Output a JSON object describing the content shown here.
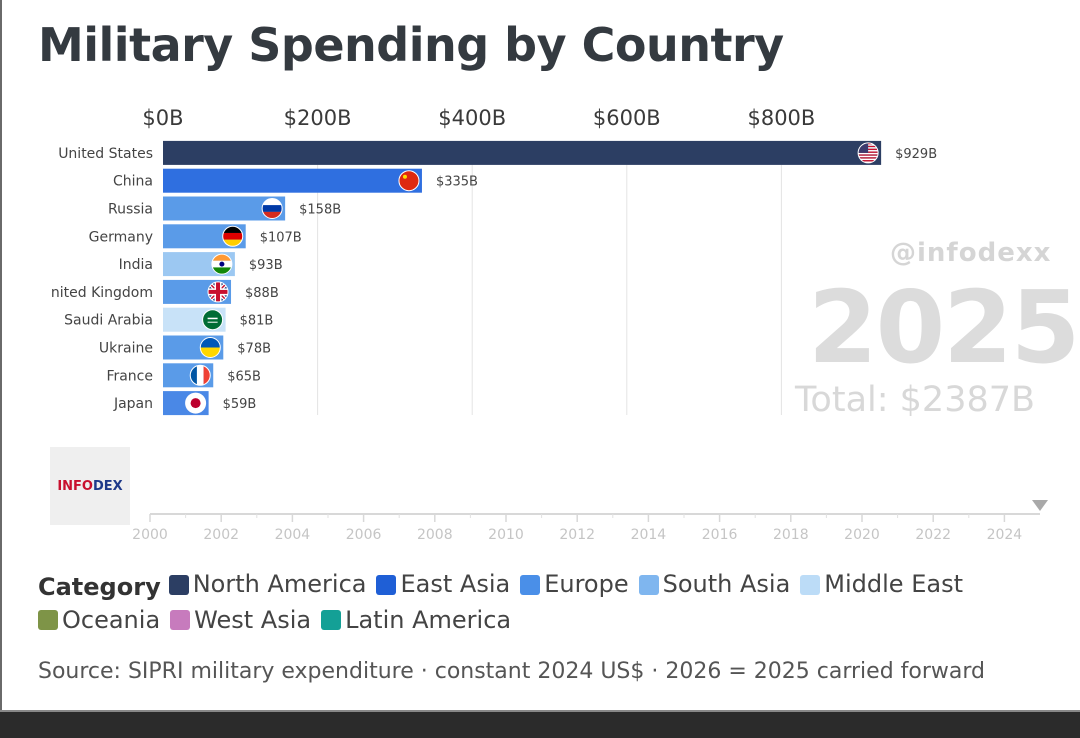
{
  "title": "Military Spending by Country",
  "watermark": "@infodexx",
  "year": "2025",
  "total": "Total: $2387B",
  "logo": {
    "part_a": "INFO",
    "part_b": "DEX"
  },
  "legend": {
    "title": "Category",
    "items": [
      {
        "label": "North America",
        "color": "#2c3e63"
      },
      {
        "label": "East Asia",
        "color": "#1f5fd6"
      },
      {
        "label": "Europe",
        "color": "#4a8fe8"
      },
      {
        "label": "South Asia",
        "color": "#7fb6ef"
      },
      {
        "label": "Middle East",
        "color": "#bcdcf7"
      },
      {
        "label": "Oceania",
        "color": "#7e9447"
      },
      {
        "label": "West Asia",
        "color": "#c77bbd"
      },
      {
        "label": "Latin America",
        "color": "#14a096"
      }
    ]
  },
  "source": "Source: SIPRI military expenditure · constant 2024 US$ · 2026 = 2025 carried forward",
  "chart_data": {
    "type": "bar",
    "orientation": "horizontal",
    "title": "Military Spending by Country",
    "xlim": [
      0,
      929
    ],
    "xticks": [
      0,
      200,
      400,
      600,
      800
    ],
    "xtick_labels": [
      "$0B",
      "$200B",
      "$400B",
      "$600B",
      "$800B"
    ],
    "grid": true,
    "categories": [
      "United States",
      "China",
      "Russia",
      "Germany",
      "India",
      "United Kingdom",
      "Saudi Arabia",
      "Ukraine",
      "France",
      "Japan"
    ],
    "display_labels": [
      "United States",
      "China",
      "Russia",
      "Germany",
      "India",
      "nited Kingdom",
      "Saudi Arabia",
      "Ukraine",
      "France",
      "Japan"
    ],
    "values": [
      929,
      335,
      158,
      107,
      93,
      88,
      81,
      78,
      65,
      59
    ],
    "value_labels": [
      "$929B",
      "$335B",
      "$158B",
      "$107B",
      "$93B",
      "$88B",
      "$81B",
      "$78B",
      "$65B",
      "$59B"
    ],
    "regions": [
      "North America",
      "East Asia",
      "Europe",
      "Europe",
      "South Asia",
      "Europe",
      "Middle East",
      "Europe",
      "Europe",
      "East Asia"
    ],
    "bar_colors": [
      "#2c3e63",
      "#2f6fe0",
      "#5a9be8",
      "#5a9be8",
      "#9cc8f2",
      "#5a9be8",
      "#c8e2f8",
      "#5a9be8",
      "#5a9be8",
      "#4a88e6"
    ],
    "flag_icons": [
      "us-flag-icon",
      "china-flag-icon",
      "russia-flag-icon",
      "germany-flag-icon",
      "india-flag-icon",
      "uk-flag-icon",
      "saudi-arabia-flag-icon",
      "ukraine-flag-icon",
      "france-flag-icon",
      "japan-flag-icon"
    ],
    "timeline": {
      "range": [
        2000,
        2025
      ],
      "tick_labels": [
        "2000",
        "2002",
        "2004",
        "2006",
        "2008",
        "2010",
        "2012",
        "2014",
        "2016",
        "2018",
        "2020",
        "2022",
        "2024"
      ],
      "current": 2025
    }
  }
}
